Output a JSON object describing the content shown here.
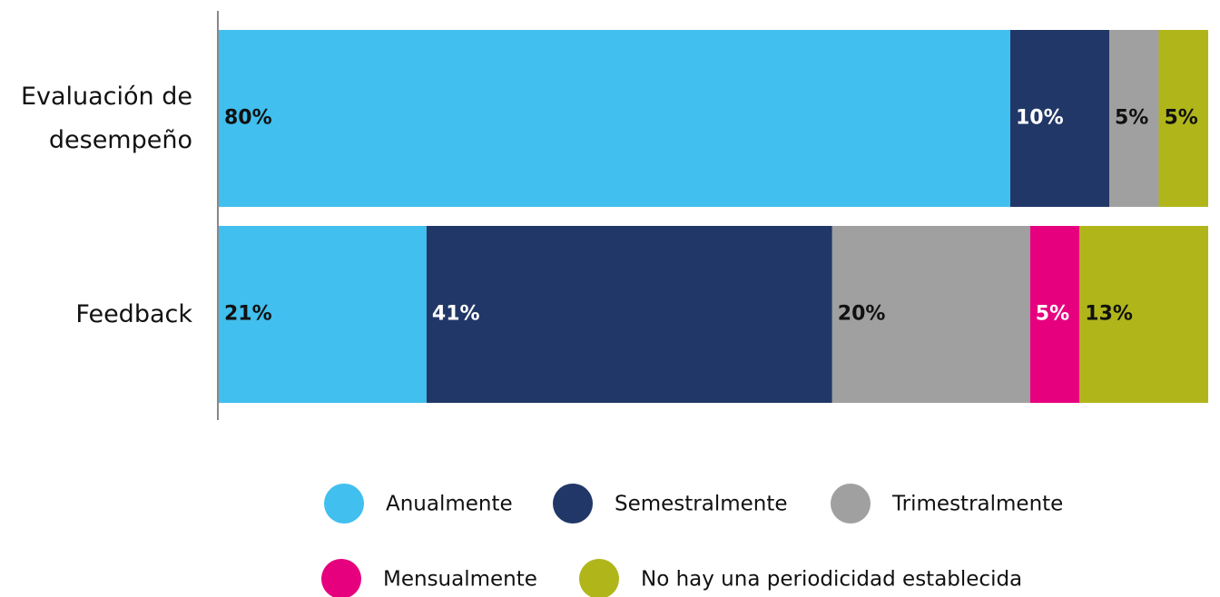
{
  "chart_data": {
    "type": "stacked-barh",
    "categories": [
      "Evaluación de desempeño",
      "Feedback"
    ],
    "xlim": [
      0,
      100
    ],
    "series": [
      {
        "name": "Anualmente",
        "color": "#41bfee",
        "values": [
          80,
          21
        ],
        "value_labels": [
          "80%",
          "21%"
        ]
      },
      {
        "name": "Semestralmente",
        "color": "#213767",
        "values": [
          10,
          41
        ],
        "value_labels": [
          "10%",
          "41%"
        ]
      },
      {
        "name": "Trimestralmente",
        "color": "#a0a0a0",
        "values": [
          5,
          20
        ],
        "value_labels": [
          "5%",
          "20%"
        ]
      },
      {
        "name": "Mensualmente",
        "color": "#e6007e",
        "values": [
          null,
          5
        ],
        "value_labels": [
          null,
          "5%"
        ]
      },
      {
        "name": "No hay una periodicidad establecida",
        "color": "#b0b61a",
        "values": [
          5,
          13
        ],
        "value_labels": [
          "5%",
          "13%"
        ]
      }
    ],
    "legend": "bottom"
  }
}
